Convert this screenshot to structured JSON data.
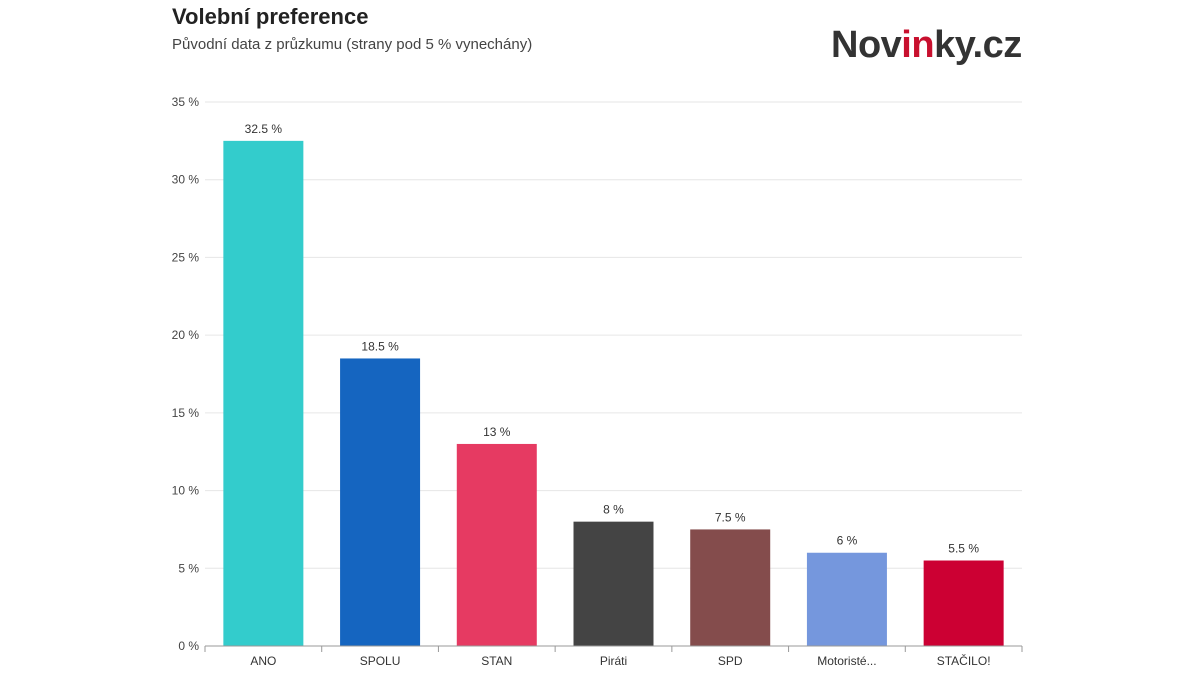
{
  "header": {
    "title": "Volební preference",
    "subtitle": "Původní data z průzkumu (strany pod 5 % vynechány)"
  },
  "logo": {
    "part1": "Nov",
    "part2": "in",
    "part3": "ky.cz",
    "text_color": "#333333",
    "accent_color": "#c8102e"
  },
  "chart_data": {
    "type": "bar",
    "title": "Volební preference",
    "subtitle": "Původní data z průzkumu (strany pod 5 % vynechány)",
    "xlabel": "",
    "ylabel": "",
    "ylim": [
      0,
      35
    ],
    "yticks": [
      0,
      5,
      10,
      15,
      20,
      25,
      30,
      35
    ],
    "ytick_suffix": " %",
    "grid": true,
    "legend": "none",
    "categories": [
      "ANO",
      "SPOLU",
      "STAN",
      "Piráti",
      "SPD",
      "Motoristé...",
      "STAČILO!"
    ],
    "values": [
      32.5,
      18.5,
      13,
      8,
      7.5,
      6,
      5.5
    ],
    "data_labels": [
      "32.5 %",
      "18.5 %",
      "13 %",
      "8 %",
      "7.5 %",
      "6 %",
      "5.5 %"
    ],
    "colors": [
      "#33cccc",
      "#1565c0",
      "#e63a62",
      "#444444",
      "#844c4c",
      "#7597dd",
      "#cc0033"
    ]
  }
}
